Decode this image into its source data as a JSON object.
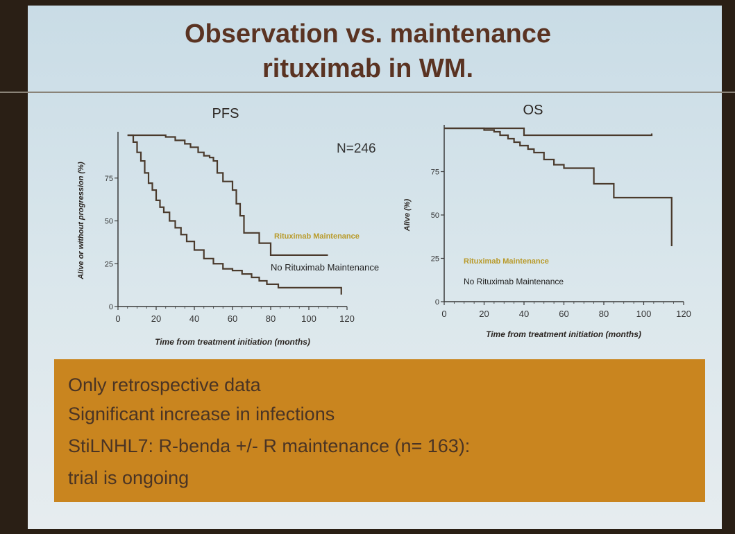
{
  "slide": {
    "title_line1": "Observation vs. maintenance",
    "title_line2": "rituximab in WM.",
    "takeaways": [
      "Only retrospective data",
      "Significant increase in infections",
      "StiLNHL7: R-benda +/- R maintenance (n= 163):",
      "trial is ongoing"
    ]
  },
  "colors": {
    "slide_top": "#c9dce6",
    "slide_bottom": "#e6ecef",
    "title": "#5a3322",
    "curve": "#4a3a2c",
    "maintenance_label": "#b89a2a",
    "takeaway_box": "#c9851f",
    "takeaway_text": "#4a3424"
  },
  "chart_data": [
    {
      "type": "line",
      "title": "PFS",
      "annotation": "N=246",
      "xlabel": "Time from treatment initiation (months)",
      "ylabel": "Alive or without progression (%)",
      "xlim": [
        0,
        120
      ],
      "ylim": [
        0,
        100
      ],
      "xticks": [
        0,
        20,
        40,
        60,
        80,
        100,
        120
      ],
      "yticks": [
        0,
        25,
        50,
        75
      ],
      "grid": false,
      "series": [
        {
          "name": "Rituximab Maintenance",
          "x": [
            5,
            10,
            15,
            20,
            25,
            30,
            35,
            38,
            42,
            45,
            48,
            50,
            52,
            55,
            58,
            60,
            62,
            64,
            66,
            70,
            74,
            76,
            80,
            84,
            90,
            100,
            110
          ],
          "y": [
            100,
            100,
            100,
            100,
            99,
            97,
            95,
            93,
            90,
            88,
            87,
            85,
            78,
            73,
            73,
            68,
            60,
            53,
            43,
            43,
            37,
            37,
            30,
            30,
            30,
            30,
            30
          ]
        },
        {
          "name": "No Rituximab Maintenance",
          "x": [
            5,
            8,
            10,
            12,
            14,
            16,
            18,
            20,
            22,
            24,
            27,
            30,
            33,
            36,
            40,
            45,
            50,
            55,
            60,
            65,
            70,
            74,
            78,
            84,
            90,
            100,
            110,
            117
          ],
          "y": [
            100,
            96,
            90,
            85,
            78,
            72,
            68,
            62,
            58,
            55,
            50,
            46,
            42,
            38,
            33,
            28,
            25,
            22,
            21,
            19,
            17,
            15,
            13,
            11,
            11,
            11,
            11,
            7
          ]
        }
      ]
    },
    {
      "type": "line",
      "title": "OS",
      "xlabel": "Time from treatment initiation (months)",
      "ylabel": "Alive (%)",
      "xlim": [
        0,
        120
      ],
      "ylim": [
        0,
        100
      ],
      "xticks": [
        0,
        20,
        40,
        60,
        80,
        100,
        120
      ],
      "yticks": [
        0,
        25,
        50,
        75
      ],
      "grid": false,
      "series": [
        {
          "name": "Rituximab Maintenance",
          "x": [
            0,
            10,
            20,
            30,
            38,
            40,
            50,
            60,
            70,
            80,
            90,
            100,
            104
          ],
          "y": [
            100,
            100,
            100,
            100,
            100,
            96,
            96,
            96,
            96,
            96,
            96,
            96,
            97
          ]
        },
        {
          "name": "No Rituximab Maintenance",
          "x": [
            0,
            10,
            20,
            25,
            28,
            32,
            35,
            38,
            42,
            45,
            50,
            55,
            60,
            65,
            70,
            75,
            78,
            85,
            90,
            100,
            105,
            110,
            114
          ],
          "y": [
            100,
            100,
            99,
            98,
            96,
            94,
            92,
            90,
            88,
            86,
            82,
            79,
            77,
            77,
            77,
            68,
            68,
            60,
            60,
            60,
            60,
            60,
            32
          ]
        }
      ]
    }
  ]
}
